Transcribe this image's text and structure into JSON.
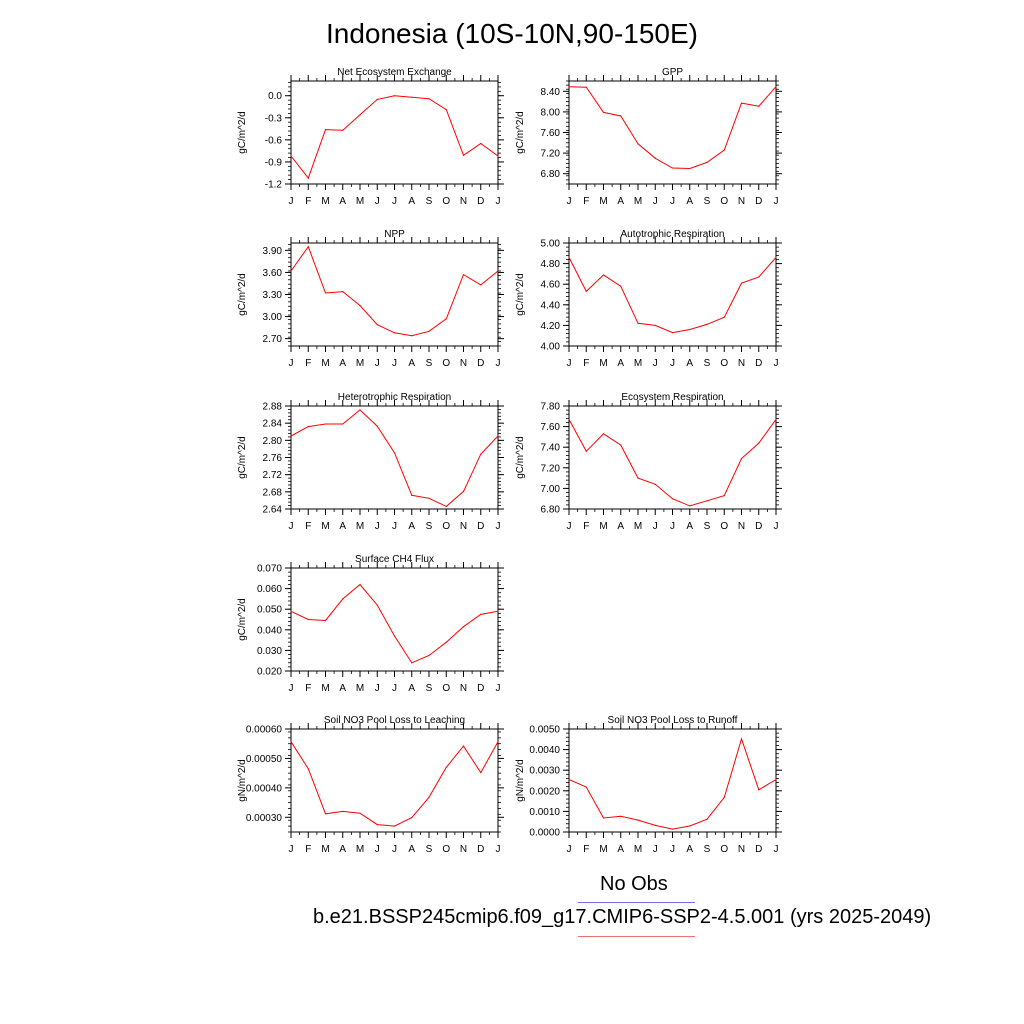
{
  "page_title": "Indonesia (10S-10N,90-150E)",
  "legend": {
    "obs_label": "No Obs",
    "obs_color": "#6e6eec",
    "model_label": "b.e21.BSSP245cmip6.f09_g17.CMIP6-SSP2-4.5.001 (yrs 2025-2049)",
    "model_color": "#f06e6e"
  },
  "line_color": "#ff0000",
  "chart_data": [
    {
      "type": "line",
      "title": "Net Ecosystem Exchange",
      "ylabel": "gC/m^2/d",
      "xlabel": "",
      "categories": [
        "J",
        "F",
        "M",
        "A",
        "M",
        "J",
        "J",
        "A",
        "S",
        "O",
        "N",
        "D",
        "J"
      ],
      "values": [
        -0.82,
        -1.12,
        -0.46,
        -0.47,
        -0.26,
        -0.05,
        0.0,
        -0.02,
        -0.04,
        -0.19,
        -0.81,
        -0.65,
        -0.82
      ],
      "ylim": [
        -1.2,
        0.2
      ],
      "yticks": [
        -1.2,
        -0.9,
        -0.6,
        -0.3,
        0.0
      ],
      "ytick_labels": [
        "-1.2",
        "-0.9",
        "-0.6",
        "-0.3",
        "0.0"
      ]
    },
    {
      "type": "line",
      "title": "GPP",
      "ylabel": "gC/m^2/d",
      "xlabel": "",
      "categories": [
        "J",
        "F",
        "M",
        "A",
        "M",
        "J",
        "J",
        "A",
        "S",
        "O",
        "N",
        "D",
        "J"
      ],
      "values": [
        8.49,
        8.48,
        7.99,
        7.92,
        7.38,
        7.1,
        6.91,
        6.9,
        7.02,
        7.26,
        8.17,
        8.11,
        8.49
      ],
      "ylim": [
        6.6,
        8.6
      ],
      "yticks": [
        6.8,
        7.2,
        7.6,
        8.0,
        8.4
      ],
      "ytick_labels": [
        "6.80",
        "7.20",
        "7.60",
        "8.00",
        "8.40"
      ]
    },
    {
      "type": "line",
      "title": "NPP",
      "ylabel": "gC/m^2/d",
      "xlabel": "",
      "categories": [
        "J",
        "F",
        "M",
        "A",
        "M",
        "J",
        "J",
        "A",
        "S",
        "O",
        "N",
        "D",
        "J"
      ],
      "values": [
        3.62,
        3.95,
        3.32,
        3.34,
        3.15,
        2.89,
        2.78,
        2.74,
        2.8,
        2.97,
        3.57,
        3.43,
        3.62
      ],
      "ylim": [
        2.6,
        4.0
      ],
      "yticks": [
        2.7,
        3.0,
        3.3,
        3.6,
        3.9
      ],
      "ytick_labels": [
        "2.70",
        "3.00",
        "3.30",
        "3.60",
        "3.90"
      ]
    },
    {
      "type": "line",
      "title": "Autotrophic Respiration",
      "ylabel": "gC/m^2/d",
      "xlabel": "",
      "categories": [
        "J",
        "F",
        "M",
        "A",
        "M",
        "J",
        "J",
        "A",
        "S",
        "O",
        "N",
        "D",
        "J"
      ],
      "values": [
        4.86,
        4.53,
        4.69,
        4.58,
        4.22,
        4.2,
        4.13,
        4.16,
        4.21,
        4.28,
        4.61,
        4.67,
        4.86
      ],
      "ylim": [
        4.0,
        5.0
      ],
      "yticks": [
        4.0,
        4.2,
        4.4,
        4.6,
        4.8,
        5.0
      ],
      "ytick_labels": [
        "4.00",
        "4.20",
        "4.40",
        "4.60",
        "4.80",
        "5.00"
      ]
    },
    {
      "type": "line",
      "title": "Heterotrophic Respiration",
      "ylabel": "gC/m^2/d",
      "xlabel": "",
      "categories": [
        "J",
        "F",
        "M",
        "A",
        "M",
        "J",
        "J",
        "A",
        "S",
        "O",
        "N",
        "D",
        "J"
      ],
      "values": [
        2.81,
        2.832,
        2.838,
        2.838,
        2.871,
        2.833,
        2.771,
        2.672,
        2.665,
        2.646,
        2.681,
        2.768,
        2.81
      ],
      "ylim": [
        2.64,
        2.88
      ],
      "yticks": [
        2.64,
        2.68,
        2.72,
        2.76,
        2.8,
        2.84,
        2.88
      ],
      "ytick_labels": [
        "2.64",
        "2.68",
        "2.72",
        "2.76",
        "2.80",
        "2.84",
        "2.88"
      ]
    },
    {
      "type": "line",
      "title": "Ecosystem Respiration",
      "ylabel": "gC/m^2/d",
      "xlabel": "",
      "categories": [
        "J",
        "F",
        "M",
        "A",
        "M",
        "J",
        "J",
        "A",
        "S",
        "O",
        "N",
        "D",
        "J"
      ],
      "values": [
        7.67,
        7.36,
        7.53,
        7.42,
        7.1,
        7.04,
        6.9,
        6.83,
        6.88,
        6.93,
        7.29,
        7.44,
        7.67
      ],
      "ylim": [
        6.8,
        7.8
      ],
      "yticks": [
        6.8,
        7.0,
        7.2,
        7.4,
        7.6,
        7.8
      ],
      "ytick_labels": [
        "6.80",
        "7.00",
        "7.20",
        "7.40",
        "7.60",
        "7.80"
      ]
    },
    {
      "type": "line",
      "title": "Surface CH4 Flux",
      "ylabel": "gC/m^2/d",
      "xlabel": "",
      "categories": [
        "J",
        "F",
        "M",
        "A",
        "M",
        "J",
        "J",
        "A",
        "S",
        "O",
        "N",
        "D",
        "J"
      ],
      "values": [
        0.049,
        0.045,
        0.0445,
        0.055,
        0.062,
        0.052,
        0.037,
        0.024,
        0.0275,
        0.034,
        0.0415,
        0.0475,
        0.049
      ],
      "ylim": [
        0.02,
        0.07
      ],
      "yticks": [
        0.02,
        0.03,
        0.04,
        0.05,
        0.06,
        0.07
      ],
      "ytick_labels": [
        "0.020",
        "0.030",
        "0.040",
        "0.050",
        "0.060",
        "0.070"
      ]
    },
    {
      "type": "line",
      "title": "Soil NO3 Pool Loss to Leaching",
      "ylabel": "gN/m^2/d",
      "xlabel": "",
      "categories": [
        "J",
        "F",
        "M",
        "A",
        "M",
        "J",
        "J",
        "A",
        "S",
        "O",
        "N",
        "D",
        "J"
      ],
      "values": [
        0.000557,
        0.000465,
        0.000312,
        0.00032,
        0.000314,
        0.000275,
        0.00027,
        0.000299,
        0.000368,
        0.00047,
        0.000542,
        0.000452,
        0.000557
      ],
      "ylim": [
        0.00025,
        0.0006
      ],
      "yticks": [
        0.0003,
        0.0004,
        0.0005,
        0.0006
      ],
      "ytick_labels": [
        "0.00030",
        "0.00040",
        "0.00050",
        "0.00060"
      ]
    },
    {
      "type": "line",
      "title": "Soil NO3 Pool Loss to Runoff",
      "ylabel": "gN/m^2/d",
      "xlabel": "",
      "categories": [
        "J",
        "F",
        "M",
        "A",
        "M",
        "J",
        "J",
        "A",
        "S",
        "O",
        "N",
        "D",
        "J"
      ],
      "values": [
        0.00255,
        0.00218,
        0.00068,
        0.00076,
        0.00058,
        0.00032,
        0.00014,
        0.00029,
        0.00062,
        0.00168,
        0.00452,
        0.00205,
        0.00255
      ],
      "ylim": [
        0.0,
        0.005
      ],
      "yticks": [
        0.0,
        0.001,
        0.002,
        0.003,
        0.004,
        0.005
      ],
      "ytick_labels": [
        "0.0000",
        "0.0010",
        "0.0020",
        "0.0030",
        "0.0040",
        "0.0050"
      ]
    }
  ]
}
